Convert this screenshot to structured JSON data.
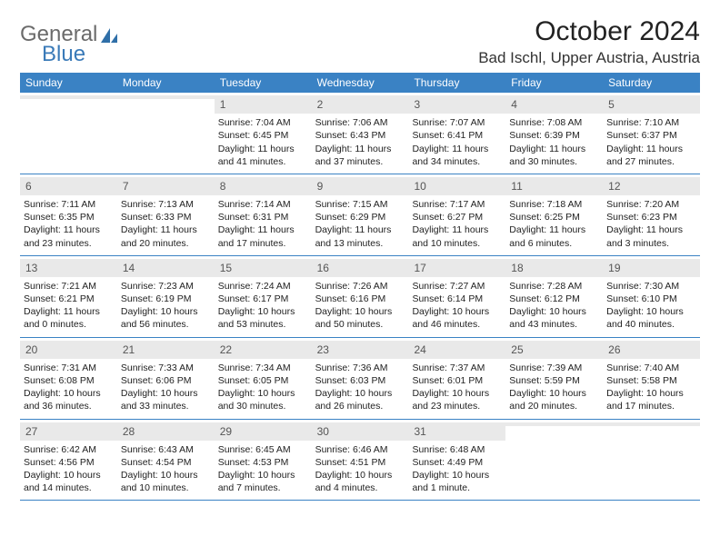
{
  "logo": {
    "word1": "General",
    "word2": "Blue"
  },
  "title": "October 2024",
  "location": "Bad Ischl, Upper Austria, Austria",
  "colors": {
    "header_bg": "#3a82c4",
    "daynum_bg": "#e9e9e9",
    "rule": "#3a82c4",
    "logo_gray": "#6b6b6b",
    "logo_blue": "#3a7ab8"
  },
  "weekdays": [
    "Sunday",
    "Monday",
    "Tuesday",
    "Wednesday",
    "Thursday",
    "Friday",
    "Saturday"
  ],
  "weeks": [
    [
      {
        "n": "",
        "sr": "",
        "ss": "",
        "dl": ""
      },
      {
        "n": "",
        "sr": "",
        "ss": "",
        "dl": ""
      },
      {
        "n": "1",
        "sr": "Sunrise: 7:04 AM",
        "ss": "Sunset: 6:45 PM",
        "dl": "Daylight: 11 hours and 41 minutes."
      },
      {
        "n": "2",
        "sr": "Sunrise: 7:06 AM",
        "ss": "Sunset: 6:43 PM",
        "dl": "Daylight: 11 hours and 37 minutes."
      },
      {
        "n": "3",
        "sr": "Sunrise: 7:07 AM",
        "ss": "Sunset: 6:41 PM",
        "dl": "Daylight: 11 hours and 34 minutes."
      },
      {
        "n": "4",
        "sr": "Sunrise: 7:08 AM",
        "ss": "Sunset: 6:39 PM",
        "dl": "Daylight: 11 hours and 30 minutes."
      },
      {
        "n": "5",
        "sr": "Sunrise: 7:10 AM",
        "ss": "Sunset: 6:37 PM",
        "dl": "Daylight: 11 hours and 27 minutes."
      }
    ],
    [
      {
        "n": "6",
        "sr": "Sunrise: 7:11 AM",
        "ss": "Sunset: 6:35 PM",
        "dl": "Daylight: 11 hours and 23 minutes."
      },
      {
        "n": "7",
        "sr": "Sunrise: 7:13 AM",
        "ss": "Sunset: 6:33 PM",
        "dl": "Daylight: 11 hours and 20 minutes."
      },
      {
        "n": "8",
        "sr": "Sunrise: 7:14 AM",
        "ss": "Sunset: 6:31 PM",
        "dl": "Daylight: 11 hours and 17 minutes."
      },
      {
        "n": "9",
        "sr": "Sunrise: 7:15 AM",
        "ss": "Sunset: 6:29 PM",
        "dl": "Daylight: 11 hours and 13 minutes."
      },
      {
        "n": "10",
        "sr": "Sunrise: 7:17 AM",
        "ss": "Sunset: 6:27 PM",
        "dl": "Daylight: 11 hours and 10 minutes."
      },
      {
        "n": "11",
        "sr": "Sunrise: 7:18 AM",
        "ss": "Sunset: 6:25 PM",
        "dl": "Daylight: 11 hours and 6 minutes."
      },
      {
        "n": "12",
        "sr": "Sunrise: 7:20 AM",
        "ss": "Sunset: 6:23 PM",
        "dl": "Daylight: 11 hours and 3 minutes."
      }
    ],
    [
      {
        "n": "13",
        "sr": "Sunrise: 7:21 AM",
        "ss": "Sunset: 6:21 PM",
        "dl": "Daylight: 11 hours and 0 minutes."
      },
      {
        "n": "14",
        "sr": "Sunrise: 7:23 AM",
        "ss": "Sunset: 6:19 PM",
        "dl": "Daylight: 10 hours and 56 minutes."
      },
      {
        "n": "15",
        "sr": "Sunrise: 7:24 AM",
        "ss": "Sunset: 6:17 PM",
        "dl": "Daylight: 10 hours and 53 minutes."
      },
      {
        "n": "16",
        "sr": "Sunrise: 7:26 AM",
        "ss": "Sunset: 6:16 PM",
        "dl": "Daylight: 10 hours and 50 minutes."
      },
      {
        "n": "17",
        "sr": "Sunrise: 7:27 AM",
        "ss": "Sunset: 6:14 PM",
        "dl": "Daylight: 10 hours and 46 minutes."
      },
      {
        "n": "18",
        "sr": "Sunrise: 7:28 AM",
        "ss": "Sunset: 6:12 PM",
        "dl": "Daylight: 10 hours and 43 minutes."
      },
      {
        "n": "19",
        "sr": "Sunrise: 7:30 AM",
        "ss": "Sunset: 6:10 PM",
        "dl": "Daylight: 10 hours and 40 minutes."
      }
    ],
    [
      {
        "n": "20",
        "sr": "Sunrise: 7:31 AM",
        "ss": "Sunset: 6:08 PM",
        "dl": "Daylight: 10 hours and 36 minutes."
      },
      {
        "n": "21",
        "sr": "Sunrise: 7:33 AM",
        "ss": "Sunset: 6:06 PM",
        "dl": "Daylight: 10 hours and 33 minutes."
      },
      {
        "n": "22",
        "sr": "Sunrise: 7:34 AM",
        "ss": "Sunset: 6:05 PM",
        "dl": "Daylight: 10 hours and 30 minutes."
      },
      {
        "n": "23",
        "sr": "Sunrise: 7:36 AM",
        "ss": "Sunset: 6:03 PM",
        "dl": "Daylight: 10 hours and 26 minutes."
      },
      {
        "n": "24",
        "sr": "Sunrise: 7:37 AM",
        "ss": "Sunset: 6:01 PM",
        "dl": "Daylight: 10 hours and 23 minutes."
      },
      {
        "n": "25",
        "sr": "Sunrise: 7:39 AM",
        "ss": "Sunset: 5:59 PM",
        "dl": "Daylight: 10 hours and 20 minutes."
      },
      {
        "n": "26",
        "sr": "Sunrise: 7:40 AM",
        "ss": "Sunset: 5:58 PM",
        "dl": "Daylight: 10 hours and 17 minutes."
      }
    ],
    [
      {
        "n": "27",
        "sr": "Sunrise: 6:42 AM",
        "ss": "Sunset: 4:56 PM",
        "dl": "Daylight: 10 hours and 14 minutes."
      },
      {
        "n": "28",
        "sr": "Sunrise: 6:43 AM",
        "ss": "Sunset: 4:54 PM",
        "dl": "Daylight: 10 hours and 10 minutes."
      },
      {
        "n": "29",
        "sr": "Sunrise: 6:45 AM",
        "ss": "Sunset: 4:53 PM",
        "dl": "Daylight: 10 hours and 7 minutes."
      },
      {
        "n": "30",
        "sr": "Sunrise: 6:46 AM",
        "ss": "Sunset: 4:51 PM",
        "dl": "Daylight: 10 hours and 4 minutes."
      },
      {
        "n": "31",
        "sr": "Sunrise: 6:48 AM",
        "ss": "Sunset: 4:49 PM",
        "dl": "Daylight: 10 hours and 1 minute."
      },
      {
        "n": "",
        "sr": "",
        "ss": "",
        "dl": ""
      },
      {
        "n": "",
        "sr": "",
        "ss": "",
        "dl": ""
      }
    ]
  ]
}
